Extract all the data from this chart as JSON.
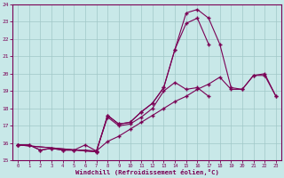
{
  "xlabel": "Windchill (Refroidissement éolien,°C)",
  "bg_color": "#c8e8e8",
  "grid_color": "#a0c8c8",
  "line_color": "#7a0055",
  "xlim": [
    -0.5,
    23.5
  ],
  "ylim": [
    15,
    24
  ],
  "xticks": [
    0,
    1,
    2,
    3,
    4,
    5,
    6,
    7,
    8,
    9,
    10,
    11,
    12,
    13,
    14,
    15,
    16,
    17,
    18,
    19,
    20,
    21,
    22,
    23
  ],
  "yticks": [
    15,
    16,
    17,
    18,
    19,
    20,
    21,
    22,
    23,
    24
  ],
  "lineA_x": [
    0,
    7,
    8,
    9,
    10,
    11,
    12,
    13,
    14,
    15,
    16,
    17,
    18,
    19,
    20,
    21,
    22,
    23
  ],
  "lineA_y": [
    15.9,
    15.5,
    17.6,
    17.1,
    17.2,
    17.8,
    18.3,
    19.2,
    21.4,
    23.5,
    23.7,
    23.2,
    21.7,
    19.2,
    19.1,
    19.9,
    19.9,
    18.7
  ],
  "lineB_x": [
    0,
    7,
    8,
    9,
    10,
    11,
    12,
    13,
    14,
    15,
    16,
    17
  ],
  "lineB_y": [
    15.9,
    15.5,
    17.6,
    17.1,
    17.2,
    17.8,
    18.3,
    19.2,
    21.4,
    22.9,
    23.2,
    21.7
  ],
  "lineC_x": [
    0,
    1,
    2,
    3,
    4,
    5,
    6,
    7,
    8,
    9,
    10,
    11,
    12,
    13,
    14,
    15,
    16,
    17,
    18,
    19,
    20,
    21,
    22,
    23
  ],
  "lineC_y": [
    15.9,
    15.9,
    15.6,
    15.7,
    15.6,
    15.6,
    15.6,
    15.55,
    16.1,
    16.4,
    16.8,
    17.2,
    17.6,
    18.0,
    18.4,
    18.7,
    19.1,
    19.4,
    19.8,
    19.1,
    19.1,
    19.9,
    20.0,
    18.7
  ],
  "lineD_x": [
    0,
    1,
    2,
    3,
    4,
    5,
    6,
    7,
    8,
    9,
    10,
    11,
    12,
    13,
    14,
    15,
    16,
    17
  ],
  "lineD_y": [
    15.9,
    15.9,
    15.6,
    15.7,
    15.6,
    15.6,
    15.9,
    15.55,
    17.5,
    17.0,
    17.1,
    17.5,
    18.0,
    19.0,
    19.5,
    19.1,
    19.2,
    18.7
  ]
}
